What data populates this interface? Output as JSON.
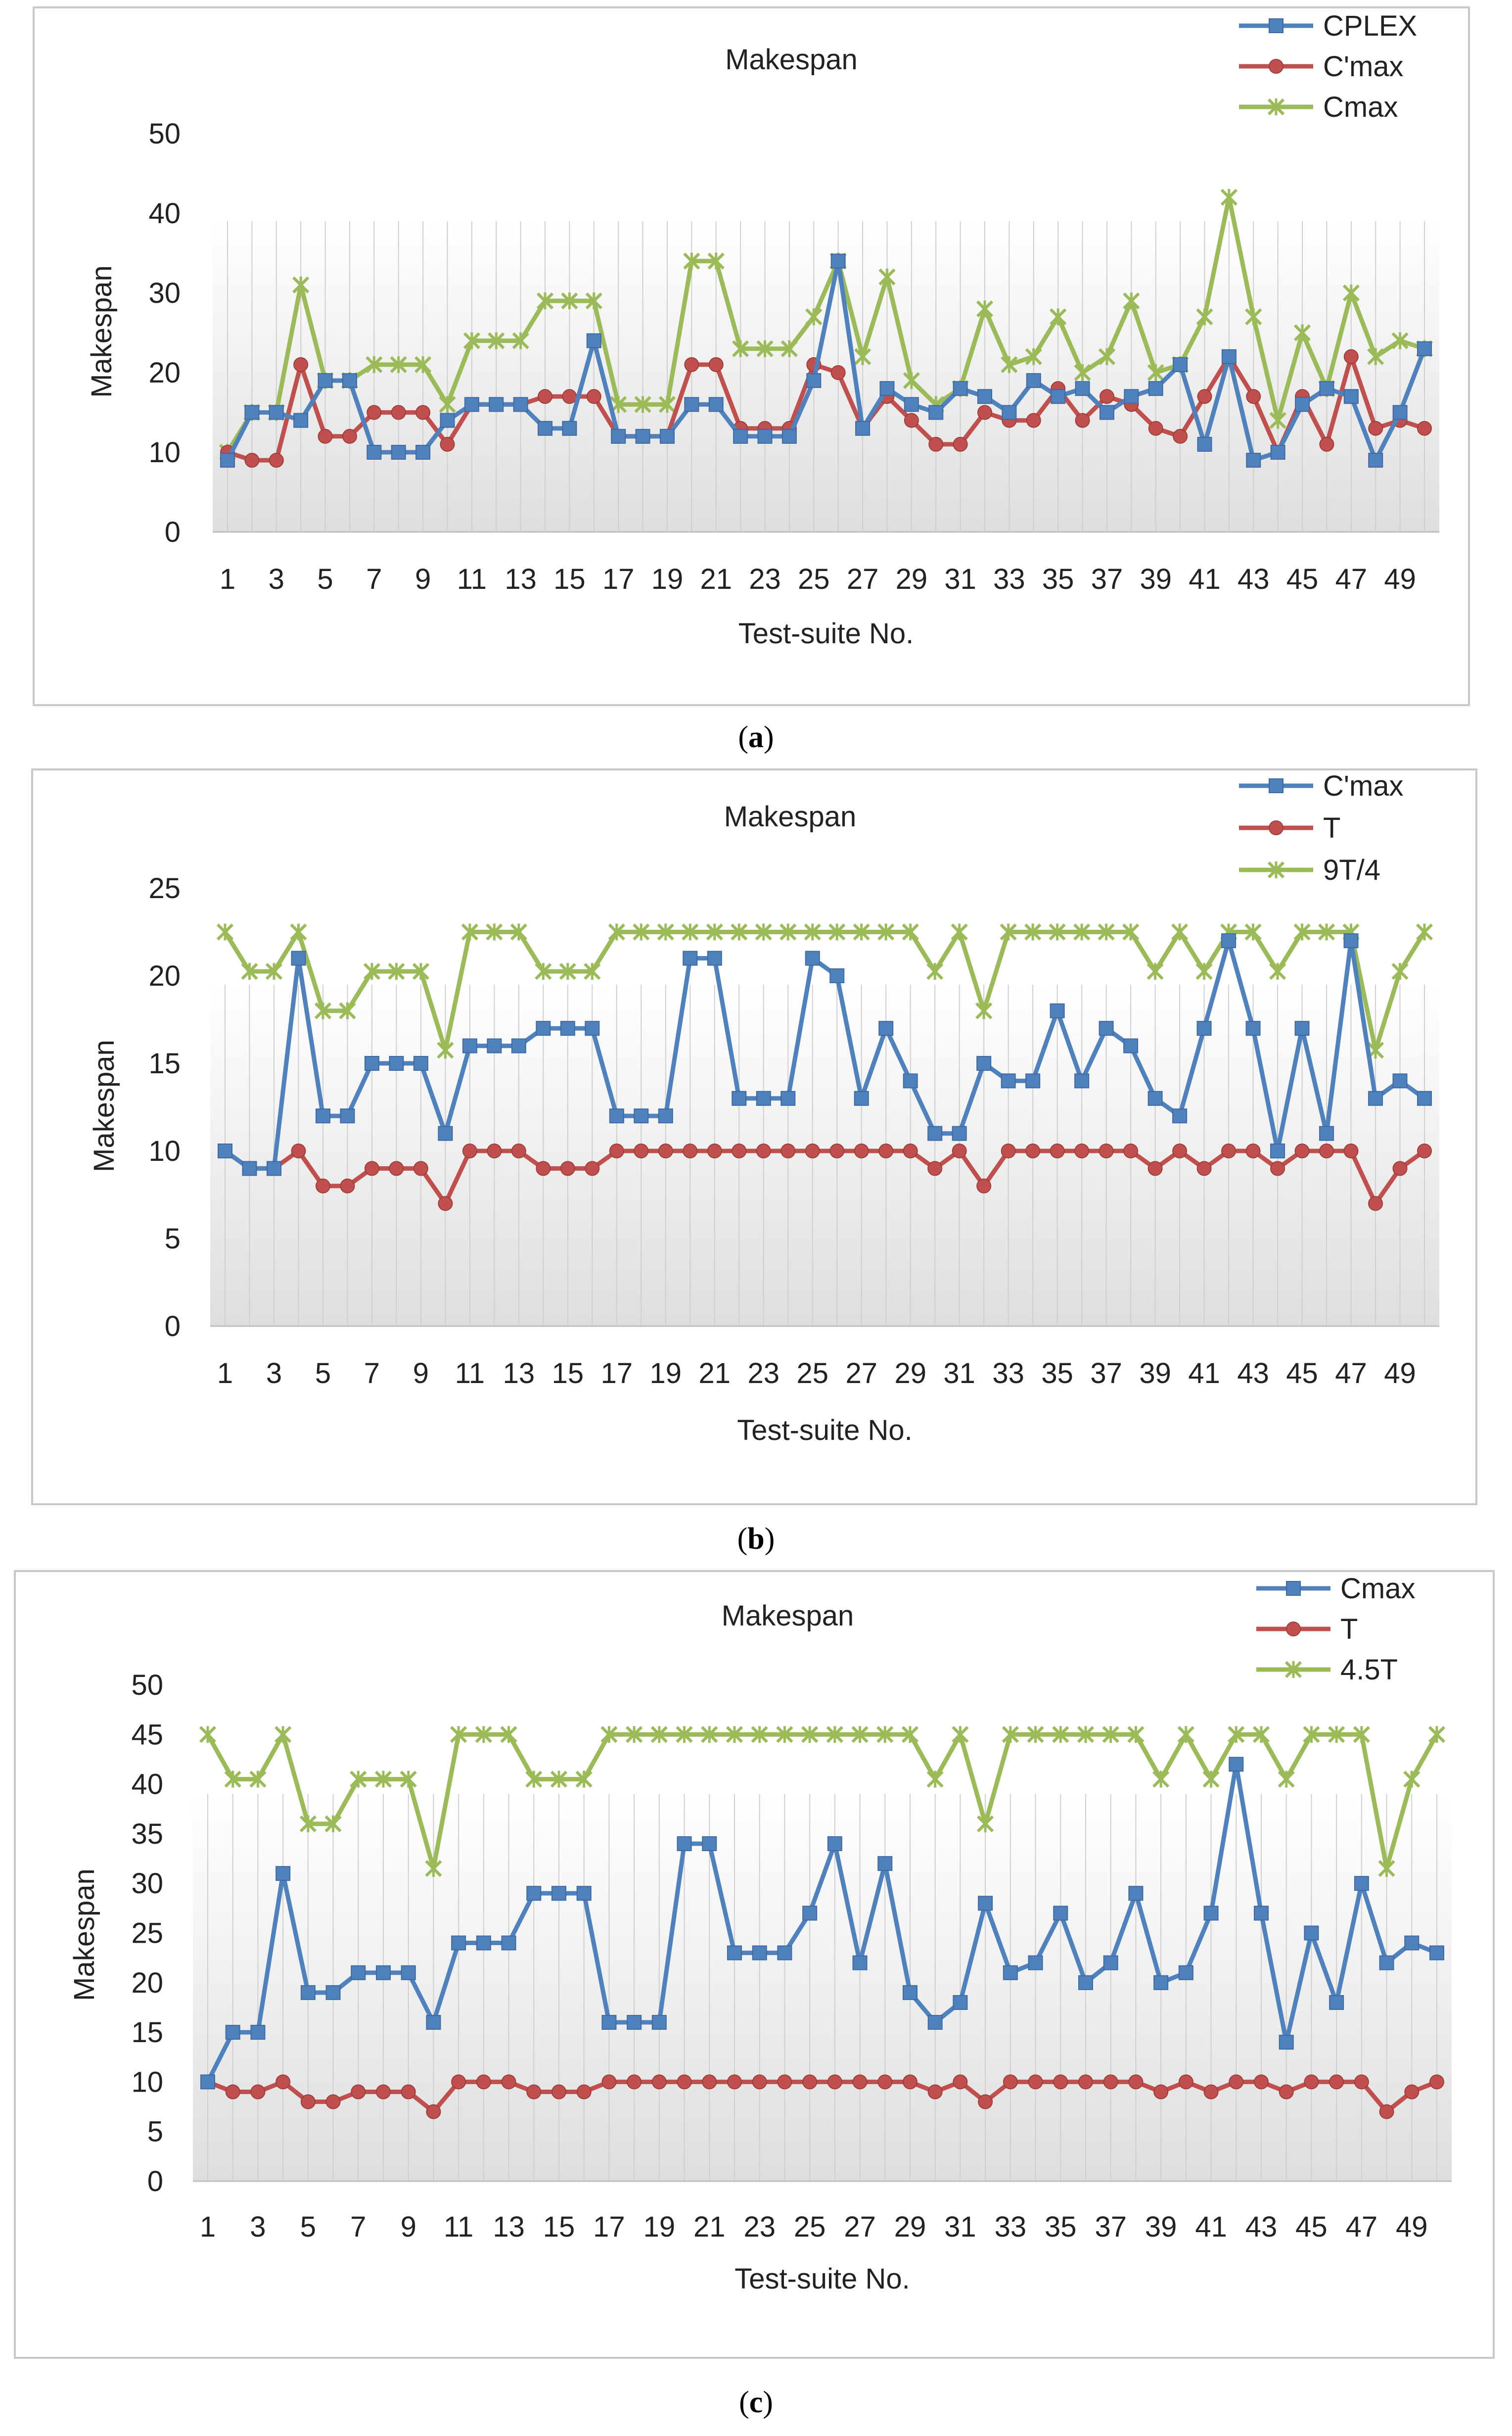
{
  "panels": [
    {
      "caption": "a",
      "chart_data": {
        "type": "line",
        "title": "Makespan",
        "xlabel": "Test-suite  No.",
        "ylabel": "Makespan",
        "ylim": [
          0,
          50
        ],
        "yticks": [
          0,
          10,
          20,
          30,
          40,
          50
        ],
        "grid": "vertical",
        "legend": "top-right",
        "x": [
          1,
          2,
          3,
          4,
          5,
          6,
          7,
          8,
          9,
          10,
          11,
          12,
          13,
          14,
          15,
          16,
          17,
          18,
          19,
          20,
          21,
          22,
          23,
          24,
          25,
          26,
          27,
          28,
          29,
          30,
          31,
          32,
          33,
          34,
          35,
          36,
          37,
          38,
          39,
          40,
          41,
          42,
          43,
          44,
          45,
          46,
          47,
          48,
          49,
          50
        ],
        "xtick_labels": [
          "1",
          "3",
          "5",
          "7",
          "9",
          "11",
          "13",
          "15",
          "17",
          "19",
          "21",
          "23",
          "25",
          "27",
          "29",
          "31",
          "33",
          "35",
          "37",
          "39",
          "41",
          "43",
          "45",
          "47",
          "49"
        ],
        "series": [
          {
            "name": "CPLEX",
            "color": "#4F81BD",
            "marker": "square",
            "values": [
              9,
              15,
              15,
              14,
              19,
              19,
              10,
              10,
              10,
              14,
              16,
              16,
              16,
              13,
              13,
              24,
              12,
              12,
              12,
              16,
              16,
              12,
              12,
              12,
              19,
              34,
              13,
              18,
              16,
              15,
              18,
              17,
              15,
              19,
              17,
              18,
              15,
              17,
              18,
              21,
              11,
              22,
              9,
              10,
              16,
              18,
              17,
              9,
              15,
              23
            ]
          },
          {
            "name": "C'max",
            "color": "#C0504D",
            "marker": "circle",
            "values": [
              10,
              9,
              9,
              21,
              12,
              12,
              15,
              15,
              15,
              11,
              16,
              16,
              16,
              17,
              17,
              17,
              12,
              12,
              12,
              21,
              21,
              13,
              13,
              13,
              21,
              20,
              13,
              17,
              14,
              11,
              11,
              15,
              14,
              14,
              18,
              14,
              17,
              16,
              13,
              12,
              17,
              22,
              17,
              10,
              17,
              11,
              22,
              13,
              14,
              13
            ]
          },
          {
            "name": "Cmax",
            "color": "#9BBB59",
            "marker": "star",
            "values": [
              10,
              15,
              15,
              31,
              19,
              19,
              21,
              21,
              21,
              16,
              24,
              24,
              24,
              29,
              29,
              29,
              16,
              16,
              16,
              34,
              34,
              23,
              23,
              23,
              27,
              34,
              22,
              32,
              19,
              16,
              18,
              28,
              21,
              22,
              27,
              20,
              22,
              29,
              20,
              21,
              27,
              42,
              27,
              14,
              25,
              18,
              30,
              22,
              24,
              23
            ]
          }
        ]
      }
    },
    {
      "caption": "b",
      "chart_data": {
        "type": "line",
        "title": "Makespan",
        "xlabel": "Test-suite No.",
        "ylabel": "Makespan",
        "ylim": [
          0,
          25
        ],
        "yticks": [
          0,
          5,
          10,
          15,
          20,
          25
        ],
        "grid": "vertical",
        "legend": "top-right",
        "x": [
          1,
          2,
          3,
          4,
          5,
          6,
          7,
          8,
          9,
          10,
          11,
          12,
          13,
          14,
          15,
          16,
          17,
          18,
          19,
          20,
          21,
          22,
          23,
          24,
          25,
          26,
          27,
          28,
          29,
          30,
          31,
          32,
          33,
          34,
          35,
          36,
          37,
          38,
          39,
          40,
          41,
          42,
          43,
          44,
          45,
          46,
          47,
          48,
          49,
          50
        ],
        "xtick_labels": [
          "1",
          "3",
          "5",
          "7",
          "9",
          "11",
          "13",
          "15",
          "17",
          "19",
          "21",
          "23",
          "25",
          "27",
          "29",
          "31",
          "33",
          "35",
          "37",
          "39",
          "41",
          "43",
          "45",
          "47",
          "49"
        ],
        "series": [
          {
            "name": "C'max",
            "color": "#4F81BD",
            "marker": "square",
            "values": [
              10,
              9,
              9,
              21,
              12,
              12,
              15,
              15,
              15,
              11,
              16,
              16,
              16,
              17,
              17,
              17,
              12,
              12,
              12,
              21,
              21,
              13,
              13,
              13,
              21,
              20,
              13,
              17,
              14,
              11,
              11,
              15,
              14,
              14,
              18,
              14,
              17,
              16,
              13,
              12,
              17,
              22,
              17,
              10,
              17,
              11,
              22,
              13,
              14,
              13
            ]
          },
          {
            "name": "T",
            "color": "#C0504D",
            "marker": "circle",
            "values": [
              10,
              9,
              9,
              10,
              8,
              8,
              9,
              9,
              9,
              7,
              10,
              10,
              10,
              9,
              9,
              9,
              10,
              10,
              10,
              10,
              10,
              10,
              10,
              10,
              10,
              10,
              10,
              10,
              10,
              9,
              10,
              8,
              10,
              10,
              10,
              10,
              10,
              10,
              9,
              10,
              9,
              10,
              10,
              9,
              10,
              10,
              10,
              7,
              9,
              10
            ]
          },
          {
            "name": "9T/4",
            "color": "#9BBB59",
            "marker": "star",
            "values": [
              22.5,
              20.25,
              20.25,
              22.5,
              18,
              18,
              20.25,
              20.25,
              20.25,
              15.75,
              22.5,
              22.5,
              22.5,
              20.25,
              20.25,
              20.25,
              22.5,
              22.5,
              22.5,
              22.5,
              22.5,
              22.5,
              22.5,
              22.5,
              22.5,
              22.5,
              22.5,
              22.5,
              22.5,
              20.25,
              22.5,
              18,
              22.5,
              22.5,
              22.5,
              22.5,
              22.5,
              22.5,
              20.25,
              22.5,
              20.25,
              22.5,
              22.5,
              20.25,
              22.5,
              22.5,
              22.5,
              15.75,
              20.25,
              22.5
            ]
          }
        ]
      }
    },
    {
      "caption": "c",
      "chart_data": {
        "type": "line",
        "title": "Makespan",
        "xlabel": "Test-suite No.",
        "ylabel": "Makespan",
        "ylim": [
          0,
          50
        ],
        "yticks": [
          0,
          5,
          10,
          15,
          20,
          25,
          30,
          35,
          40,
          45,
          50
        ],
        "grid": "vertical",
        "legend": "top-right",
        "x": [
          1,
          2,
          3,
          4,
          5,
          6,
          7,
          8,
          9,
          10,
          11,
          12,
          13,
          14,
          15,
          16,
          17,
          18,
          19,
          20,
          21,
          22,
          23,
          24,
          25,
          26,
          27,
          28,
          29,
          30,
          31,
          32,
          33,
          34,
          35,
          36,
          37,
          38,
          39,
          40,
          41,
          42,
          43,
          44,
          45,
          46,
          47,
          48,
          49,
          50
        ],
        "xtick_labels": [
          "1",
          "3",
          "5",
          "7",
          "9",
          "11",
          "13",
          "15",
          "17",
          "19",
          "21",
          "23",
          "25",
          "27",
          "29",
          "31",
          "33",
          "35",
          "37",
          "39",
          "41",
          "43",
          "45",
          "47",
          "49"
        ],
        "series": [
          {
            "name": "Cmax",
            "color": "#4F81BD",
            "marker": "square",
            "values": [
              10,
              15,
              15,
              31,
              19,
              19,
              21,
              21,
              21,
              16,
              24,
              24,
              24,
              29,
              29,
              29,
              16,
              16,
              16,
              34,
              34,
              23,
              23,
              23,
              27,
              34,
              22,
              32,
              19,
              16,
              18,
              28,
              21,
              22,
              27,
              20,
              22,
              29,
              20,
              21,
              27,
              42,
              27,
              14,
              25,
              18,
              30,
              22,
              24,
              23
            ]
          },
          {
            "name": "T",
            "color": "#C0504D",
            "marker": "circle",
            "values": [
              10,
              9,
              9,
              10,
              8,
              8,
              9,
              9,
              9,
              7,
              10,
              10,
              10,
              9,
              9,
              9,
              10,
              10,
              10,
              10,
              10,
              10,
              10,
              10,
              10,
              10,
              10,
              10,
              10,
              9,
              10,
              8,
              10,
              10,
              10,
              10,
              10,
              10,
              9,
              10,
              9,
              10,
              10,
              9,
              10,
              10,
              10,
              7,
              9,
              10
            ]
          },
          {
            "name": "4.5T",
            "color": "#9BBB59",
            "marker": "star",
            "values": [
              45,
              40.5,
              40.5,
              45,
              36,
              36,
              40.5,
              40.5,
              40.5,
              31.5,
              45,
              45,
              45,
              40.5,
              40.5,
              40.5,
              45,
              45,
              45,
              45,
              45,
              45,
              45,
              45,
              45,
              45,
              45,
              45,
              45,
              40.5,
              45,
              36,
              45,
              45,
              45,
              45,
              45,
              45,
              40.5,
              45,
              40.5,
              45,
              45,
              40.5,
              45,
              45,
              45,
              31.5,
              40.5,
              45
            ]
          }
        ]
      }
    }
  ]
}
